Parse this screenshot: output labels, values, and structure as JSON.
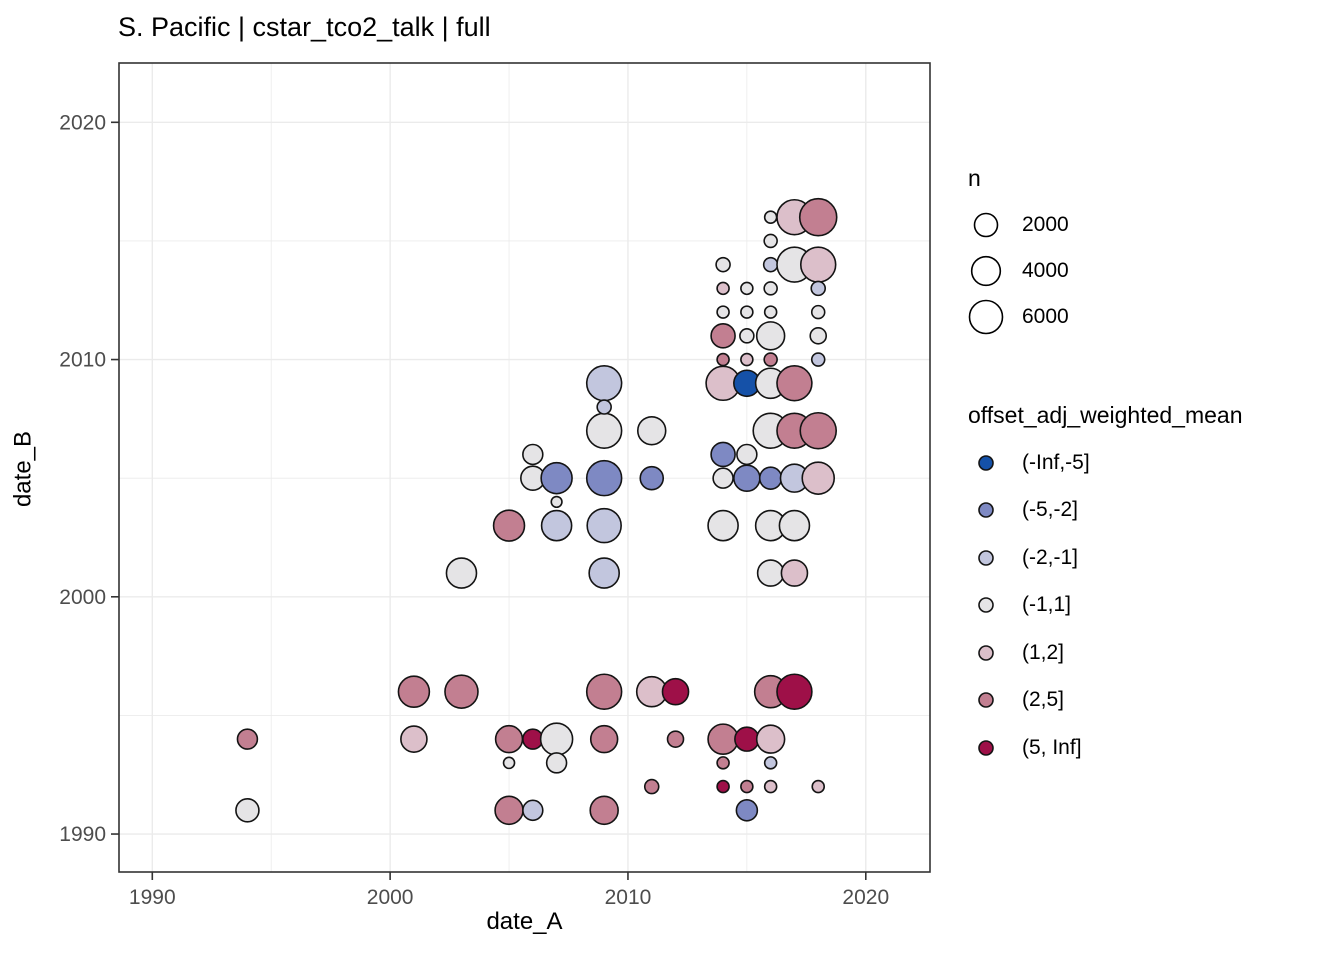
{
  "chart": {
    "title": "S. Pacific | cstar_tco2_talk | full",
    "x_axis": {
      "label": "date_A",
      "ticks": [
        1990,
        2000,
        2010,
        2020
      ],
      "minor_ticks": [
        1995,
        2005,
        2015
      ],
      "range": [
        1988.6,
        2022.7
      ]
    },
    "y_axis": {
      "label": "date_B",
      "ticks": [
        1990,
        2000,
        2010,
        2020
      ],
      "minor_ticks": [
        1995,
        2005,
        2015
      ],
      "range": [
        1988.4,
        2022.5
      ]
    },
    "size_legend": {
      "title": "n",
      "values": [
        2000,
        4000,
        6000
      ]
    },
    "color_legend": {
      "title": "offset_adj_weighted_mean",
      "bins": [
        "(-Inf,-5]",
        "(-5,-2]",
        "(-2,-1]",
        "(-1,1]",
        "(1,2]",
        "(2,5]",
        "(5, Inf]"
      ],
      "colors": {
        "(-Inf,-5]": "#1551a8",
        "(-5,-2]": "#7e89c3",
        "(-2,-1]": "#c2c6de",
        "(-1,1]": "#e5e4e6",
        "(1,2]": "#dcbfca",
        "(2,5]": "#c27f91",
        "(5, Inf]": "#9e1048"
      },
      "outline": "#141414"
    },
    "grid_color": "#ebebeb",
    "tick_label_color": "#4d4d4d",
    "panel_border_color": "#333333"
  },
  "chart_data": {
    "type": "scatter",
    "title": "S. Pacific | cstar_tco2_talk | full",
    "xlabel": "date_A",
    "ylabel": "date_B",
    "xlim": [
      1988.6,
      2022.7
    ],
    "ylim": [
      1988.4,
      2022.5
    ],
    "grid": true,
    "legend_position": "right",
    "size_variable": "n",
    "color_variable": "offset_adj_weighted_mean",
    "columns": [
      "date_A",
      "date_B",
      "n",
      "offset_bin"
    ],
    "rows": [
      [
        1994,
        1991,
        2000,
        "(-1,1]"
      ],
      [
        1994,
        1994,
        1200,
        "(2,5]"
      ],
      [
        2001,
        1996,
        5000,
        "(2,5]"
      ],
      [
        2001,
        1994,
        3000,
        "(1,2]"
      ],
      [
        2003,
        1996,
        6000,
        "(2,5]"
      ],
      [
        2003,
        2001,
        4600,
        "(-1,1]"
      ],
      [
        2005,
        2003,
        5000,
        "(2,5]"
      ],
      [
        2005,
        1991,
        3700,
        "(2,5]"
      ],
      [
        2005,
        1994,
        3300,
        "(2,5]"
      ],
      [
        2005,
        1993,
        30,
        "(-1,1]"
      ],
      [
        2006,
        2005,
        2300,
        "(-1,1]"
      ],
      [
        2006,
        1991,
        1200,
        "(-2,-1]"
      ],
      [
        2006,
        2006,
        1200,
        "(-1,1]"
      ],
      [
        2006,
        1994,
        1200,
        "(5, Inf]"
      ],
      [
        2007,
        1994,
        5500,
        "(-1,1]"
      ],
      [
        2007,
        2005,
        5000,
        "(-5,-2]"
      ],
      [
        2007,
        2003,
        4600,
        "(-2,-1]"
      ],
      [
        2007,
        1993,
        1200,
        "(-1,1]"
      ],
      [
        2007,
        2004,
        20,
        "(-1,1]"
      ],
      [
        2009,
        2009,
        7000,
        "(-2,-1]"
      ],
      [
        2009,
        2007,
        7000,
        "(-1,1]"
      ],
      [
        2009,
        2005,
        7000,
        "(-5,-2]"
      ],
      [
        2009,
        1996,
        7000,
        "(2,5]"
      ],
      [
        2009,
        2003,
        6500,
        "(-2,-1]"
      ],
      [
        2009,
        2001,
        4600,
        "(-2,-1]"
      ],
      [
        2009,
        1991,
        3700,
        "(2,5]"
      ],
      [
        2009,
        1994,
        3300,
        "(2,5]"
      ],
      [
        2009,
        2008,
        230,
        "(-2,-1]"
      ],
      [
        2011,
        1996,
        4600,
        "(1,2]"
      ],
      [
        2011,
        2007,
        3700,
        "(-1,1]"
      ],
      [
        2011,
        2005,
        2000,
        "(-5,-2]"
      ],
      [
        2011,
        1992,
        230,
        "(2,5]"
      ],
      [
        2012,
        1996,
        3000,
        "(5, Inf]"
      ],
      [
        2012,
        1994,
        475,
        "(2,5]"
      ],
      [
        2014,
        2009,
        6500,
        "(1,2]"
      ],
      [
        2014,
        2003,
        4600,
        "(-1,1]"
      ],
      [
        2014,
        1994,
        4600,
        "(2,5]"
      ],
      [
        2014,
        2006,
        2300,
        "(-5,-2]"
      ],
      [
        2014,
        2011,
        2300,
        "(2,5]"
      ],
      [
        2014,
        2005,
        1200,
        "(-1,1]"
      ],
      [
        2014,
        2014,
        230,
        "(-1,1]"
      ],
      [
        2014,
        2013,
        75,
        "(1,2]"
      ],
      [
        2014,
        2012,
        75,
        "(-1,1]"
      ],
      [
        2014,
        2010,
        75,
        "(2,5]"
      ],
      [
        2014,
        1993,
        75,
        "(2,5]"
      ],
      [
        2014,
        1992,
        75,
        "(5, Inf]"
      ],
      [
        2015,
        2009,
        3000,
        "(-Inf,-5]"
      ],
      [
        2015,
        2005,
        3000,
        "(-5,-2]"
      ],
      [
        2015,
        1994,
        2300,
        "(5, Inf]"
      ],
      [
        2015,
        1991,
        1450,
        "(-5,-2]"
      ],
      [
        2015,
        2006,
        1200,
        "(-1,1]"
      ],
      [
        2015,
        2011,
        230,
        "(-1,1]"
      ],
      [
        2015,
        2013,
        75,
        "(-1,1]"
      ],
      [
        2015,
        2012,
        75,
        "(-1,1]"
      ],
      [
        2015,
        2010,
        75,
        "(1,2]"
      ],
      [
        2015,
        1992,
        75,
        "(2,5]"
      ],
      [
        2016,
        2007,
        7000,
        "(-1,1]"
      ],
      [
        2016,
        1996,
        5500,
        "(2,5]"
      ],
      [
        2016,
        2009,
        4600,
        "(-1,1]"
      ],
      [
        2016,
        2003,
        4600,
        "(-1,1]"
      ],
      [
        2016,
        2011,
        3700,
        "(-1,1]"
      ],
      [
        2016,
        1994,
        3700,
        "(1,2]"
      ],
      [
        2016,
        2001,
        3000,
        "(-1,1]"
      ],
      [
        2016,
        2005,
        1700,
        "(-5,-2]"
      ],
      [
        2016,
        2014,
        230,
        "(-2,-1]"
      ],
      [
        2016,
        2013,
        140,
        "(-1,1]"
      ],
      [
        2016,
        2015,
        140,
        "(-1,1]"
      ],
      [
        2016,
        2010,
        140,
        "(2,5]"
      ],
      [
        2016,
        2012,
        75,
        "(-1,1]"
      ],
      [
        2016,
        2016,
        75,
        "(-1,1]"
      ],
      [
        2016,
        1993,
        75,
        "(-2,-1]"
      ],
      [
        2016,
        1992,
        75,
        "(1,2]"
      ],
      [
        2017,
        2016,
        7000,
        "(1,2]"
      ],
      [
        2017,
        2014,
        7000,
        "(-1,1]"
      ],
      [
        2017,
        2009,
        7000,
        "(2,5]"
      ],
      [
        2017,
        2007,
        7000,
        "(2,5]"
      ],
      [
        2017,
        1996,
        7000,
        "(5, Inf]"
      ],
      [
        2017,
        2003,
        4600,
        "(-1,1]"
      ],
      [
        2017,
        2005,
        3700,
        "(-2,-1]"
      ],
      [
        2017,
        2001,
        3000,
        "(1,2]"
      ],
      [
        2018,
        2016,
        8200,
        "(2,5]"
      ],
      [
        2018,
        2007,
        7600,
        "(2,5]"
      ],
      [
        2018,
        2014,
        7000,
        "(1,2]"
      ],
      [
        2018,
        2005,
        5500,
        "(1,2]"
      ],
      [
        2018,
        2011,
        475,
        "(-1,1]"
      ],
      [
        2018,
        2013,
        230,
        "(-2,-1]"
      ],
      [
        2018,
        2012,
        140,
        "(-1,1]"
      ],
      [
        2018,
        2010,
        140,
        "(-2,-1]"
      ],
      [
        2018,
        1992,
        75,
        "(1,2]"
      ]
    ]
  }
}
